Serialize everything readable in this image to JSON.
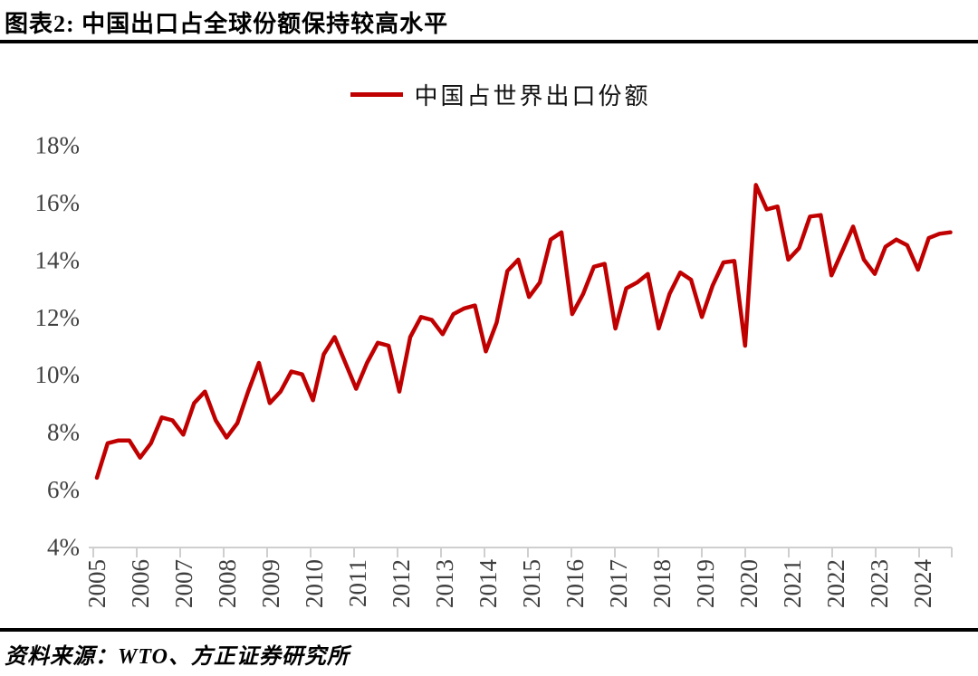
{
  "header": {
    "title": "图表2: 中国出口占全球份额保持较高水平"
  },
  "legend": {
    "label": "中国占世界出口份额",
    "swatch_color": "#c00000"
  },
  "footer": {
    "source": "资料来源：WTO、方正证券研究所"
  },
  "chart_data": {
    "type": "line",
    "title": "图表2: 中国出口占全球份额保持较高水平",
    "legend_entries": [
      "中国占世界出口份额"
    ],
    "legend_position": "top-center",
    "grid": false,
    "x_axis": {
      "frequency": "quarterly",
      "start": "2005Q1",
      "end": "2024Q4",
      "tick_labels": [
        "2005",
        "2006",
        "2007",
        "2008",
        "2009",
        "2010",
        "2011",
        "2012",
        "2013",
        "2014",
        "2015",
        "2016",
        "2017",
        "2018",
        "2019",
        "2020",
        "2021",
        "2022",
        "2023",
        "2024"
      ],
      "label_rotation": -90
    },
    "y_axis": {
      "min": 4,
      "max": 18,
      "unit": "%",
      "tick_values": [
        18,
        16,
        14,
        12,
        10,
        8,
        6,
        4
      ],
      "tick_labels": [
        "18%",
        "16%",
        "14%",
        "12%",
        "10%",
        "8%",
        "6%",
        "4%"
      ]
    },
    "series": [
      {
        "name": "中国占世界出口份额",
        "color": "#c00000",
        "values": [
          6.4,
          7.6,
          7.7,
          7.7,
          7.1,
          7.6,
          8.5,
          8.4,
          7.9,
          9.0,
          9.4,
          8.4,
          7.8,
          8.3,
          9.4,
          10.4,
          9.0,
          9.4,
          10.1,
          10.0,
          9.1,
          10.7,
          11.3,
          10.4,
          9.5,
          10.4,
          11.1,
          11.0,
          9.4,
          11.3,
          12.0,
          11.9,
          11.4,
          12.1,
          12.3,
          12.4,
          10.8,
          11.8,
          13.6,
          14.0,
          12.7,
          13.2,
          14.7,
          14.95,
          12.1,
          12.8,
          13.75,
          13.85,
          11.6,
          13.0,
          13.2,
          13.5,
          11.6,
          12.8,
          13.55,
          13.3,
          12.0,
          13.1,
          13.9,
          13.95,
          11.0,
          16.6,
          15.75,
          15.85,
          14.0,
          14.4,
          15.5,
          15.55,
          13.45,
          14.3,
          15.15,
          14.0,
          13.5,
          14.45,
          14.7,
          14.5,
          13.65,
          14.75,
          14.9,
          14.95
        ]
      }
    ]
  }
}
